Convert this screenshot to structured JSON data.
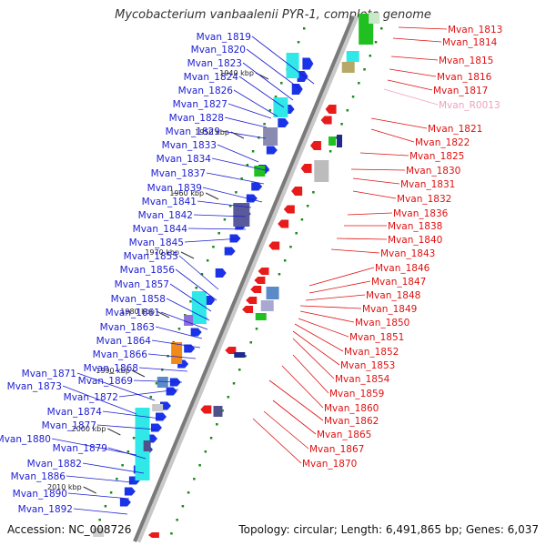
{
  "title": "Mycobacterium vanbaalenii PYR-1, complete genome",
  "footer": {
    "accession": "Accession: NC_008726",
    "summary": "Topology: circular; Length: 6,491,865 bp; Genes: 6,037"
  },
  "colors": {
    "left_label": "#1c1cd2",
    "right_label": "#e01010",
    "rna_label": "#f0a0c0",
    "backbone": "#7a7a7a",
    "forward_gene": "#1a33e8",
    "reverse_gene": "#e81a1a",
    "tick": "#1a8a1a"
  },
  "kbp_ticks": [
    "1940 kbp",
    "1950 kbp",
    "1960 kbp",
    "1970 kbp",
    "1980 kbp",
    "1990 kbp",
    "2000 kbp",
    "2010 kbp"
  ],
  "left_genes": [
    "Mvan_1819",
    "Mvan_1820",
    "Mvan_1823",
    "Mvan_1824",
    "Mvan_1826",
    "Mvan_1827",
    "Mvan_1828",
    "Mvan_1829",
    "Mvan_1833",
    "Mvan_1834",
    "Mvan_1837",
    "Mvan_1839",
    "Mvan_1841",
    "Mvan_1842",
    "Mvan_1844",
    "Mvan_1845",
    "Mvan_1855",
    "Mvan_1856",
    "Mvan_1857",
    "Mvan_1858",
    "Mvan_1861",
    "Mvan_1863",
    "Mvan_1864",
    "Mvan_1866",
    "Mvan_1868",
    "Mvan_1869",
    "Mvan_1871",
    "Mvan_1873",
    "Mvan_1872",
    "Mvan_1874",
    "Mvan_1877",
    "Mvan_1880",
    "Mvan_1879",
    "Mvan_1882",
    "Mvan_1886",
    "Mvan_1890",
    "Mvan_1892"
  ],
  "right_genes": [
    "Mvan_1813",
    "Mvan_1814",
    "Mvan_1815",
    "Mvan_1816",
    "Mvan_1817",
    "Mvan_R0013",
    "Mvan_1821",
    "Mvan_1822",
    "Mvan_1825",
    "Mvan_1830",
    "Mvan_1831",
    "Mvan_1832",
    "Mvan_1836",
    "Mvan_1838",
    "Mvan_1840",
    "Mvan_1843",
    "Mvan_1846",
    "Mvan_1847",
    "Mvan_1848",
    "Mvan_1849",
    "Mvan_1850",
    "Mvan_1851",
    "Mvan_1852",
    "Mvan_1853",
    "Mvan_1854",
    "Mvan_1859",
    "Mvan_1860",
    "Mvan_1862",
    "Mvan_1865",
    "Mvan_1867",
    "Mvan_1870"
  ],
  "rna_genes": [
    "Mvan_R0013"
  ]
}
